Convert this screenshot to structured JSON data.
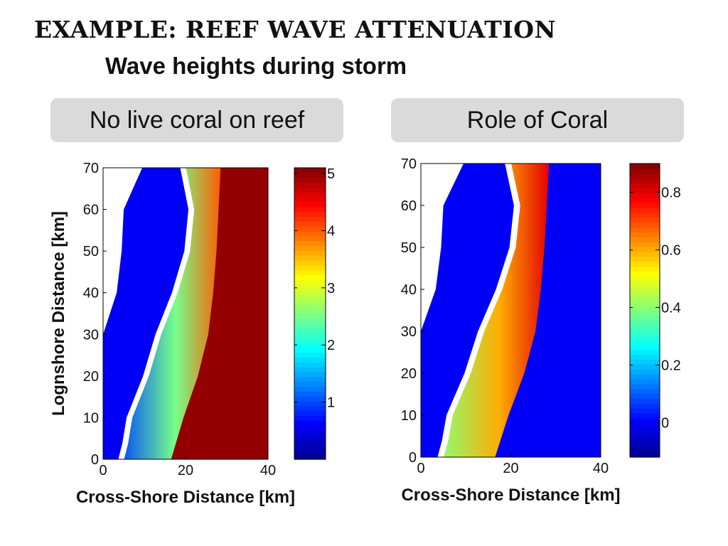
{
  "slide": {
    "title": "EXAMPLE: REEF WAVE ATTENUATION",
    "subtitle": "Wave heights during storm"
  },
  "panels": {
    "left_label": "No live coral on reef",
    "right_label": "Role of Coral"
  },
  "colors": {
    "land": "#ffffff",
    "colormap": [
      "#00008f",
      "#0000ff",
      "#0080ff",
      "#00ffff",
      "#80ff80",
      "#ffff00",
      "#ff8000",
      "#ff0000",
      "#800000"
    ]
  },
  "chart_data": [
    {
      "type": "heatmap",
      "title": "No live coral on reef",
      "xlabel": "Cross-Shore Distance [km]",
      "ylabel": "Lognshore Distance [km]",
      "xlim": [
        0,
        40
      ],
      "ylim": [
        0,
        70
      ],
      "x_ticks": [
        0,
        20,
        40
      ],
      "y_ticks": [
        0,
        10,
        20,
        30,
        40,
        50,
        60,
        70
      ],
      "colorbar": {
        "range": [
          0,
          5.1
        ],
        "ticks": [
          1,
          2,
          3,
          4,
          5
        ]
      },
      "field_values": {
        "lagoon": 0.6,
        "reef_flat": 1.0,
        "reef_crest_peak": 4.0,
        "offshore": 5.0
      }
    },
    {
      "type": "heatmap",
      "title": "Role of Coral",
      "xlabel": "Cross-Shore Distance [km]",
      "ylabel": "",
      "xlim": [
        0,
        40
      ],
      "ylim": [
        0,
        70
      ],
      "x_ticks": [
        0,
        20,
        40
      ],
      "y_ticks": [
        0,
        10,
        20,
        30,
        40,
        50,
        60,
        70
      ],
      "colorbar": {
        "range": [
          -0.12,
          0.9
        ],
        "ticks": [
          0,
          0.2,
          0.4,
          0.6,
          0.8
        ]
      },
      "field_values": {
        "lagoon": 0.0,
        "reef_flat": 0.4,
        "reef_crest_peak": 0.8,
        "offshore": 0.0
      }
    }
  ]
}
